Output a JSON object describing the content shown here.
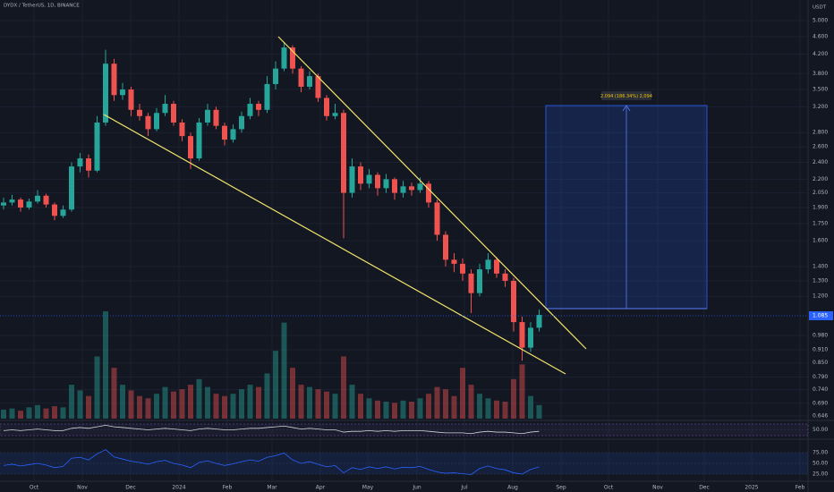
{
  "chart_data": {
    "type": "candlestick",
    "title": "DYDX / TetherUS, 1D, BINANCE",
    "currency": "USDT",
    "log_scale": true,
    "grid": true,
    "up_color": "#26a69a",
    "down_color": "#ef5350",
    "ylim": [
      0.646,
      5.0
    ],
    "yticks": [
      {
        "value": 5.0,
        "label": "5.000"
      },
      {
        "value": 4.6,
        "label": "4.600"
      },
      {
        "value": 4.2,
        "label": "4.200"
      },
      {
        "value": 3.8,
        "label": "3.800"
      },
      {
        "value": 3.5,
        "label": "3.500"
      },
      {
        "value": 3.2,
        "label": "3.200"
      },
      {
        "value": 2.8,
        "label": "2.800"
      },
      {
        "value": 2.6,
        "label": "2.600"
      },
      {
        "value": 2.4,
        "label": "2.400"
      },
      {
        "value": 2.2,
        "label": "2.200"
      },
      {
        "value": 2.05,
        "label": "2.050"
      },
      {
        "value": 1.9,
        "label": "1.900"
      },
      {
        "value": 1.75,
        "label": "1.750"
      },
      {
        "value": 1.6,
        "label": "1.600"
      },
      {
        "value": 1.4,
        "label": "1.400"
      },
      {
        "value": 1.3,
        "label": "1.300"
      },
      {
        "value": 1.2,
        "label": "1.200"
      },
      {
        "value": 0.98,
        "label": "0.980"
      },
      {
        "value": 0.91,
        "label": "0.910"
      },
      {
        "value": 0.85,
        "label": "0.850"
      },
      {
        "value": 0.79,
        "label": "0.790"
      },
      {
        "value": 0.74,
        "label": "0.740"
      },
      {
        "value": 0.69,
        "label": "0.690"
      },
      {
        "value": 0.646,
        "label": "0.646"
      }
    ],
    "current_price": {
      "value": 1.085,
      "label": "1.085",
      "color": "#2962ff"
    },
    "x_labels": [
      "Oct",
      "Nov",
      "Dec",
      "2024",
      "Feb",
      "Mar",
      "Apr",
      "May",
      "Jun",
      "Jul",
      "Aug",
      "Sep",
      "Oct",
      "Nov",
      "Dec",
      "2025",
      "Feb"
    ],
    "position_label": "2.094 (186.34%) 2,094",
    "candles": [
      [
        1.92,
        2.0,
        1.88,
        1.95
      ],
      [
        1.95,
        2.03,
        1.92,
        1.98
      ],
      [
        1.98,
        2.0,
        1.86,
        1.9
      ],
      [
        1.9,
        1.99,
        1.88,
        1.96
      ],
      [
        1.96,
        2.08,
        1.94,
        2.02
      ],
      [
        2.02,
        2.04,
        1.9,
        1.93
      ],
      [
        1.93,
        1.95,
        1.78,
        1.82
      ],
      [
        1.82,
        1.92,
        1.8,
        1.88
      ],
      [
        1.88,
        2.4,
        1.86,
        2.35
      ],
      [
        2.35,
        2.52,
        2.28,
        2.45
      ],
      [
        2.45,
        2.5,
        2.22,
        2.3
      ],
      [
        2.3,
        3.05,
        2.28,
        2.95
      ],
      [
        2.95,
        4.3,
        2.9,
        4.0
      ],
      [
        4.0,
        4.1,
        3.3,
        3.4
      ],
      [
        3.4,
        3.62,
        3.32,
        3.5
      ],
      [
        3.5,
        3.55,
        3.05,
        3.15
      ],
      [
        3.15,
        3.25,
        2.98,
        3.05
      ],
      [
        3.05,
        3.1,
        2.75,
        2.85
      ],
      [
        2.85,
        3.18,
        2.82,
        3.1
      ],
      [
        3.1,
        3.4,
        3.05,
        3.25
      ],
      [
        3.25,
        3.3,
        2.9,
        2.95
      ],
      [
        2.95,
        3.0,
        2.68,
        2.75
      ],
      [
        2.75,
        2.8,
        2.32,
        2.45
      ],
      [
        2.45,
        3.02,
        2.42,
        2.95
      ],
      [
        2.95,
        3.25,
        2.9,
        3.15
      ],
      [
        3.15,
        3.2,
        2.85,
        2.9
      ],
      [
        2.9,
        2.95,
        2.62,
        2.7
      ],
      [
        2.7,
        2.92,
        2.66,
        2.85
      ],
      [
        2.85,
        3.12,
        2.8,
        3.05
      ],
      [
        3.05,
        3.35,
        3.0,
        3.25
      ],
      [
        3.25,
        3.3,
        3.05,
        3.15
      ],
      [
        3.15,
        3.75,
        3.1,
        3.6
      ],
      [
        3.6,
        4.05,
        3.5,
        3.9
      ],
      [
        3.9,
        4.48,
        3.85,
        4.35
      ],
      [
        4.35,
        4.4,
        3.8,
        3.9
      ],
      [
        3.9,
        3.95,
        3.45,
        3.55
      ],
      [
        3.55,
        3.85,
        3.5,
        3.75
      ],
      [
        3.75,
        3.8,
        3.28,
        3.35
      ],
      [
        3.35,
        3.4,
        2.98,
        3.05
      ],
      [
        3.05,
        3.25,
        3.0,
        3.1
      ],
      [
        3.1,
        3.15,
        1.62,
        2.05
      ],
      [
        2.05,
        2.45,
        2.0,
        2.35
      ],
      [
        2.35,
        2.4,
        2.08,
        2.15
      ],
      [
        2.15,
        2.32,
        2.1,
        2.25
      ],
      [
        2.25,
        2.28,
        2.02,
        2.1
      ],
      [
        2.1,
        2.26,
        2.05,
        2.2
      ],
      [
        2.2,
        2.22,
        1.98,
        2.05
      ],
      [
        2.05,
        2.18,
        2.0,
        2.12
      ],
      [
        2.12,
        2.16,
        2.02,
        2.08
      ],
      [
        2.08,
        2.22,
        2.05,
        2.15
      ],
      [
        2.15,
        2.18,
        1.9,
        1.95
      ],
      [
        1.95,
        1.98,
        1.6,
        1.65
      ],
      [
        1.65,
        1.68,
        1.4,
        1.45
      ],
      [
        1.45,
        1.5,
        1.36,
        1.42
      ],
      [
        1.42,
        1.46,
        1.3,
        1.35
      ],
      [
        1.35,
        1.38,
        1.1,
        1.22
      ],
      [
        1.22,
        1.42,
        1.2,
        1.38
      ],
      [
        1.38,
        1.5,
        1.35,
        1.45
      ],
      [
        1.45,
        1.47,
        1.32,
        1.35
      ],
      [
        1.35,
        1.38,
        1.26,
        1.3
      ],
      [
        1.3,
        1.32,
        1.0,
        1.05
      ],
      [
        1.05,
        1.08,
        0.86,
        0.92
      ],
      [
        0.92,
        1.05,
        0.9,
        1.02
      ],
      [
        1.02,
        1.12,
        1.0,
        1.09
      ]
    ],
    "volume": [
      8,
      9,
      7,
      10,
      12,
      9,
      11,
      10,
      30,
      25,
      20,
      55,
      95,
      45,
      30,
      25,
      20,
      18,
      22,
      28,
      24,
      26,
      30,
      35,
      28,
      22,
      20,
      22,
      26,
      30,
      28,
      40,
      60,
      85,
      45,
      30,
      28,
      26,
      24,
      22,
      55,
      30,
      22,
      18,
      16,
      15,
      14,
      16,
      15,
      18,
      22,
      28,
      26,
      20,
      45,
      30,
      22,
      18,
      16,
      15,
      35,
      48,
      20,
      12
    ],
    "osc": {
      "color": "#d1d4dc",
      "ylim": [
        40,
        60
      ],
      "ticks": [
        {
          "value": 50,
          "label": "50.00"
        }
      ],
      "values": [
        49,
        50,
        49,
        50,
        51,
        50,
        49,
        49,
        52,
        53,
        52,
        54,
        56,
        54,
        53,
        52,
        51,
        50,
        51,
        52,
        51,
        50,
        49,
        51,
        52,
        51,
        50,
        50,
        51,
        52,
        52,
        53,
        54,
        55,
        53,
        51,
        52,
        51,
        50,
        50,
        47,
        48,
        48,
        49,
        48,
        49,
        48,
        49,
        49,
        49,
        48,
        47,
        46,
        46,
        46,
        45,
        47,
        48,
        47,
        47,
        46,
        45,
        47,
        48
      ]
    },
    "rsi": {
      "color": "#2962ff",
      "ylim": [
        10,
        90
      ],
      "ticks": [
        {
          "value": 75,
          "label": "75.00"
        },
        {
          "value": 50,
          "label": "50.00"
        },
        {
          "value": 25,
          "label": "25.00"
        }
      ],
      "values": [
        45,
        48,
        44,
        47,
        50,
        46,
        40,
        43,
        62,
        64,
        58,
        72,
        82,
        65,
        60,
        55,
        52,
        48,
        54,
        57,
        50,
        46,
        40,
        52,
        56,
        50,
        45,
        49,
        54,
        58,
        55,
        64,
        68,
        74,
        58,
        50,
        54,
        48,
        42,
        45,
        28,
        40,
        36,
        42,
        38,
        42,
        37,
        41,
        40,
        43,
        36,
        30,
        27,
        28,
        26,
        24,
        38,
        44,
        38,
        35,
        28,
        25,
        36,
        42
      ]
    }
  }
}
